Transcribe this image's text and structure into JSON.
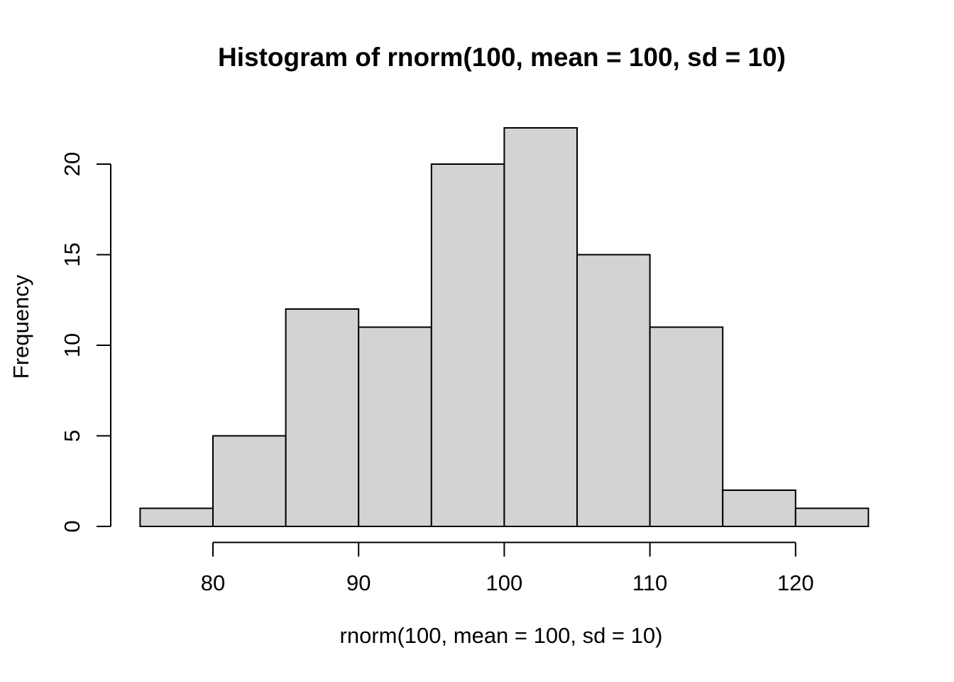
{
  "chart_data": {
    "type": "bar",
    "subtype": "histogram",
    "title": "Histogram of rnorm(100, mean = 100, sd = 10)",
    "xlabel": "rnorm(100, mean = 100, sd = 10)",
    "ylabel": "Frequency",
    "bin_edges": [
      75,
      80,
      85,
      90,
      95,
      100,
      105,
      110,
      115,
      120,
      125
    ],
    "frequencies": [
      1,
      5,
      12,
      11,
      20,
      22,
      15,
      11,
      2,
      1
    ],
    "total_count": 100,
    "x_ticks": [
      80,
      90,
      100,
      110,
      120
    ],
    "y_ticks": [
      0,
      5,
      10,
      15,
      20
    ],
    "xlim": [
      75,
      125
    ],
    "ylim": [
      0,
      22
    ],
    "grid": false,
    "legend": null,
    "colors": {
      "bar_fill": "#d3d3d3",
      "bar_stroke": "#000000",
      "axis": "#000000",
      "text": "#000000",
      "background": "#ffffff"
    }
  }
}
